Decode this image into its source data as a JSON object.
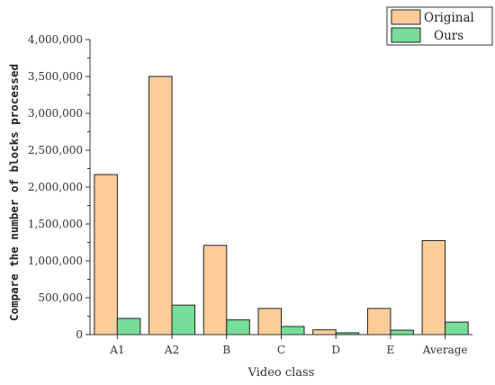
{
  "chart_data": {
    "type": "bar",
    "categories": [
      "A1",
      "A2",
      "B",
      "C",
      "D",
      "E",
      "Average"
    ],
    "series": [
      {
        "name": "Original",
        "color": "#FFCC99",
        "values": [
          2170000,
          3500000,
          1210000,
          355000,
          65000,
          355000,
          1275000
        ]
      },
      {
        "name": "Ours",
        "color": "#77DD99",
        "values": [
          220000,
          400000,
          200000,
          110000,
          25000,
          60000,
          170000
        ]
      }
    ],
    "xlabel": "Video class",
    "ylabel": "Compare the number of blocks processed",
    "ylim": [
      0,
      4000000
    ],
    "yticks": [
      0,
      500000,
      1000000,
      1500000,
      2000000,
      2500000,
      3000000,
      3500000,
      4000000
    ],
    "ytick_labels": [
      "0",
      "500,000",
      "1,000,000",
      "1,500,000",
      "2,000,000",
      "2,500,000",
      "3,000,000",
      "3,500,000",
      "4,000,000"
    ],
    "legend_position": "top-right",
    "grid": false
  }
}
